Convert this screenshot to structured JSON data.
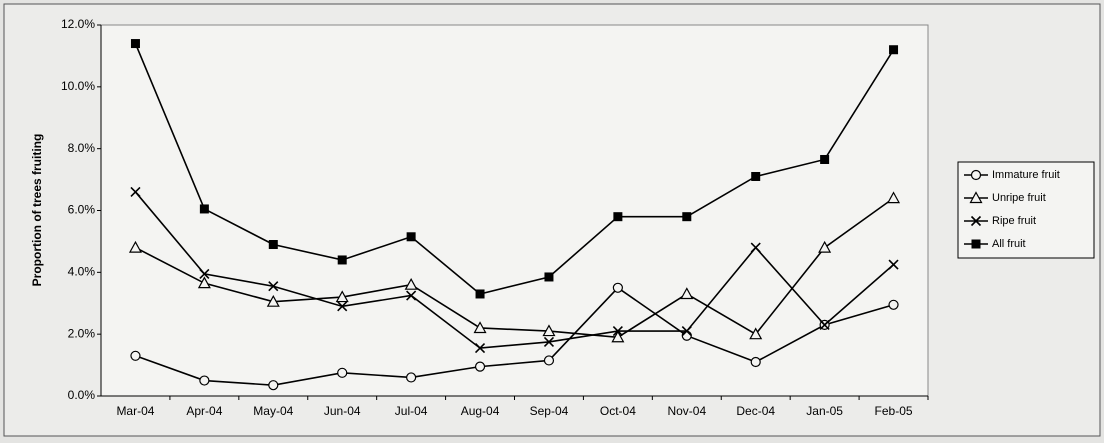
{
  "chart_data": {
    "type": "line",
    "y_label": "Proportion of trees fruiting",
    "categories": [
      "Mar-04",
      "Apr-04",
      "May-04",
      "Jun-04",
      "Jul-04",
      "Aug-04",
      "Sep-04",
      "Oct-04",
      "Nov-04",
      "Dec-04",
      "Jan-05",
      "Feb-05"
    ],
    "series": [
      {
        "name": "Immature fruit",
        "color": "#000000",
        "marker": "circle",
        "values": [
          1.3,
          0.5,
          0.35,
          0.75,
          0.6,
          0.95,
          1.15,
          3.5,
          1.95,
          1.1,
          2.3,
          2.95
        ]
      },
      {
        "name": "Unripe fruit",
        "color": "#000000",
        "marker": "triangle",
        "values": [
          4.8,
          3.65,
          3.05,
          3.2,
          3.6,
          2.2,
          2.1,
          1.9,
          3.3,
          2.0,
          4.8,
          6.4
        ]
      },
      {
        "name": "Ripe fruit",
        "color": "#000000",
        "marker": "x",
        "values": [
          6.6,
          3.95,
          3.55,
          2.9,
          3.25,
          1.55,
          1.75,
          2.1,
          2.1,
          4.8,
          2.3,
          4.25
        ]
      },
      {
        "name": "All fruit",
        "color": "#000000",
        "marker": "square",
        "values": [
          11.4,
          6.05,
          4.9,
          4.4,
          5.15,
          3.3,
          3.85,
          5.8,
          5.8,
          7.1,
          7.65,
          11.2
        ]
      }
    ],
    "ylim": [
      0,
      12
    ],
    "yticks": [
      {
        "value": 0,
        "label": "0.0%"
      },
      {
        "value": 2,
        "label": "2.0%"
      },
      {
        "value": 4,
        "label": "4.0%"
      },
      {
        "value": 6,
        "label": "6.0%"
      },
      {
        "value": 8,
        "label": "8.0%"
      },
      {
        "value": 10,
        "label": "10.0%"
      },
      {
        "value": 12,
        "label": "12.0%"
      }
    ],
    "grid": false,
    "legend": "right"
  }
}
